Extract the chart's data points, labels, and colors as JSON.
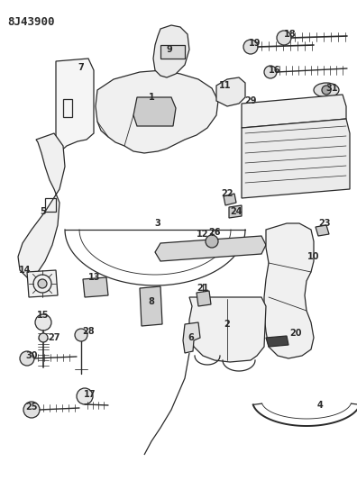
{
  "title": "8J43900",
  "bg": "#ffffff",
  "lc": "#2a2a2a",
  "figsize": [
    3.96,
    5.33
  ],
  "dpi": 100
}
